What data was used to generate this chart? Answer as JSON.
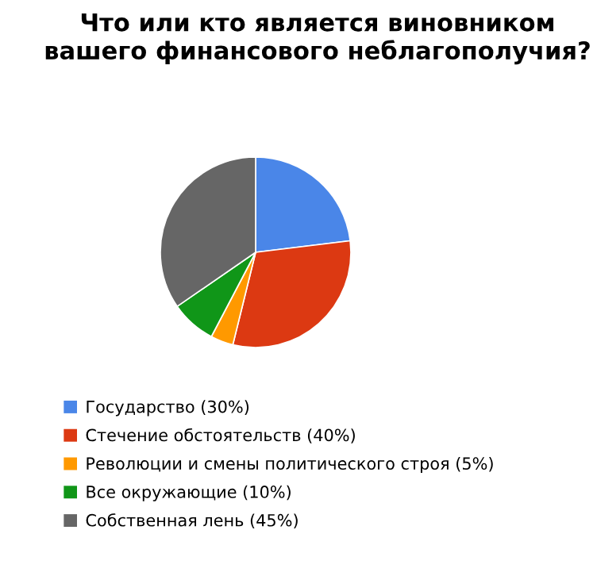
{
  "chart_data": {
    "type": "pie",
    "title": "Что или кто является виновником\nвашего финансового неблагополучия?",
    "categories": [
      "Государство (30%)",
      "Стечение обстоятельств (40%)",
      "Революции и смены политического строя (5%)",
      "Все окружающие (10%)",
      "Собственная лень (45%)"
    ],
    "values": [
      30,
      40,
      5,
      10,
      45
    ],
    "colors": [
      "#4a86e8",
      "#dc3912",
      "#ff9900",
      "#109618",
      "#666666"
    ],
    "legend": "bottom"
  }
}
